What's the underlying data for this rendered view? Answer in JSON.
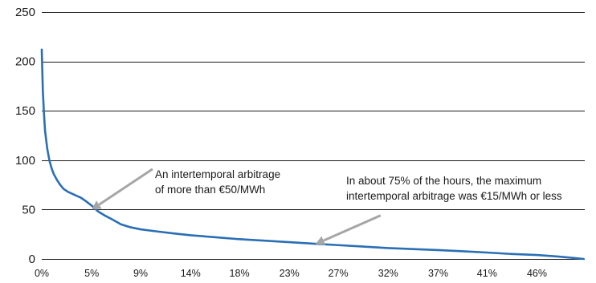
{
  "chart_data": {
    "type": "line",
    "ylim": [
      0,
      250
    ],
    "y_ticks": [
      0,
      50,
      100,
      150,
      200,
      250
    ],
    "xlim": [
      0,
      50
    ],
    "x_ticks": [
      {
        "value": 0,
        "label": "0%"
      },
      {
        "value": 4.6,
        "label": "5%"
      },
      {
        "value": 9.1,
        "label": "9%"
      },
      {
        "value": 13.7,
        "label": "14%"
      },
      {
        "value": 18.2,
        "label": "18%"
      },
      {
        "value": 22.8,
        "label": "23%"
      },
      {
        "value": 27.3,
        "label": "27%"
      },
      {
        "value": 31.9,
        "label": "32%"
      },
      {
        "value": 36.5,
        "label": "37%"
      },
      {
        "value": 41.0,
        "label": "41%"
      },
      {
        "value": 45.6,
        "label": "46%"
      }
    ],
    "grid": "horizontal",
    "series_color": "#2a6fb5",
    "series": [
      {
        "x": [
          0,
          0.1,
          0.2,
          0.3,
          0.5,
          0.7,
          0.9,
          1.1,
          1.4,
          1.7,
          2.0,
          2.4,
          2.8,
          3.2,
          3.6,
          4.0,
          4.6,
          5.2,
          5.8,
          6.5,
          7.3,
          8.2,
          9.1,
          10.5,
          12,
          13.7,
          16,
          18.2,
          20.5,
          22.8,
          25,
          27.3,
          29.6,
          31.9,
          34.2,
          36.5,
          38.8,
          41.0,
          43.3,
          45.6,
          47.5,
          49.0,
          49.9
        ],
        "y": [
          212,
          170,
          148,
          130,
          112,
          100,
          92,
          86,
          80,
          75,
          71,
          68,
          66,
          64,
          62,
          59,
          54,
          48,
          44,
          40,
          35,
          32,
          30,
          28,
          26,
          24,
          22,
          20,
          18.5,
          17,
          15.5,
          14,
          12.5,
          11,
          10,
          9,
          7.8,
          6.5,
          5,
          4,
          2.5,
          1,
          0
        ]
      }
    ],
    "annotations": [
      {
        "lines": [
          "An intertemporal arbitrage",
          "of more than €50/MWh"
        ],
        "point": [
          4.6,
          50
        ],
        "arrow_from": [
          10.2,
          91
        ]
      },
      {
        "lines": [
          "In about 75% of the hours, the maximum",
          "intertemporal arbitrage was €15/MWh or less"
        ],
        "point": [
          25.2,
          15
        ],
        "arrow_from": [
          31.2,
          44
        ]
      }
    ],
    "annotation_color": "#a6a6a6"
  }
}
